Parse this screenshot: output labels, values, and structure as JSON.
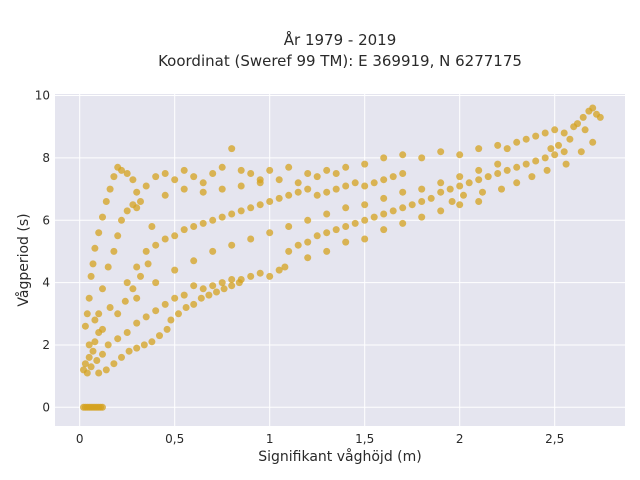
{
  "chart_data": {
    "type": "scatter",
    "title_line1": "År 1979 - 2019",
    "title_line2": "Koordinat (Sweref 99 TM): E 369919, N 6277175",
    "xlabel": "Signifikant våghöjd (m)",
    "ylabel": "Vågperiod (s)",
    "xlim": [
      -0.13,
      2.87
    ],
    "ylim": [
      -0.6,
      10.05
    ],
    "x_ticks": [
      0,
      0.5,
      1,
      1.5,
      2,
      2.5
    ],
    "x_tick_labels": [
      "0",
      "0,5",
      "1",
      "1,5",
      "2",
      "2,5"
    ],
    "y_ticks": [
      0,
      2,
      4,
      6,
      8,
      10
    ],
    "y_tick_labels": [
      "0",
      "2",
      "4",
      "6",
      "8",
      "10"
    ],
    "grid": true,
    "legend": "none",
    "marker_color": "#d4a21f",
    "plot_background": "#e5e5ef",
    "series": [
      {
        "values": [
          [
            0.02,
            0.0
          ],
          [
            0.03,
            0.0
          ],
          [
            0.04,
            0.0
          ],
          [
            0.05,
            0.0
          ],
          [
            0.06,
            0.0
          ],
          [
            0.07,
            0.0
          ],
          [
            0.08,
            0.0
          ],
          [
            0.09,
            0.0
          ],
          [
            0.1,
            0.0
          ],
          [
            0.11,
            0.0
          ],
          [
            0.12,
            0.0
          ],
          [
            0.02,
            1.2
          ],
          [
            0.03,
            1.4
          ],
          [
            0.04,
            1.1
          ],
          [
            0.05,
            1.6
          ],
          [
            0.06,
            1.3
          ],
          [
            0.07,
            1.8
          ],
          [
            0.08,
            2.1
          ],
          [
            0.09,
            1.5
          ],
          [
            0.1,
            2.4
          ],
          [
            0.12,
            1.7
          ],
          [
            0.03,
            2.6
          ],
          [
            0.04,
            3.0
          ],
          [
            0.05,
            3.5
          ],
          [
            0.06,
            4.2
          ],
          [
            0.07,
            4.6
          ],
          [
            0.08,
            5.1
          ],
          [
            0.1,
            5.6
          ],
          [
            0.12,
            6.1
          ],
          [
            0.14,
            6.6
          ],
          [
            0.16,
            7.0
          ],
          [
            0.18,
            7.4
          ],
          [
            0.2,
            7.7
          ],
          [
            0.22,
            7.6
          ],
          [
            0.25,
            7.5
          ],
          [
            0.28,
            7.3
          ],
          [
            0.3,
            6.9
          ],
          [
            0.35,
            7.1
          ],
          [
            0.4,
            7.4
          ],
          [
            0.45,
            7.5
          ],
          [
            0.5,
            7.3
          ],
          [
            0.15,
            2.0
          ],
          [
            0.2,
            2.2
          ],
          [
            0.25,
            2.4
          ],
          [
            0.3,
            2.7
          ],
          [
            0.35,
            2.9
          ],
          [
            0.4,
            3.1
          ],
          [
            0.45,
            3.3
          ],
          [
            0.5,
            3.5
          ],
          [
            0.55,
            3.6
          ],
          [
            0.6,
            3.9
          ],
          [
            0.65,
            3.8
          ],
          [
            0.7,
            3.9
          ],
          [
            0.75,
            4.0
          ],
          [
            0.8,
            4.1
          ],
          [
            0.85,
            4.1
          ],
          [
            0.9,
            4.2
          ],
          [
            0.95,
            4.3
          ],
          [
            1.0,
            4.2
          ],
          [
            1.05,
            4.4
          ],
          [
            1.08,
            4.5
          ],
          [
            0.55,
            7.6
          ],
          [
            0.6,
            7.4
          ],
          [
            0.65,
            7.2
          ],
          [
            0.7,
            7.5
          ],
          [
            0.75,
            7.7
          ],
          [
            0.8,
            8.3
          ],
          [
            0.85,
            7.6
          ],
          [
            0.9,
            7.5
          ],
          [
            0.95,
            7.3
          ],
          [
            1.0,
            7.6
          ],
          [
            1.1,
            7.7
          ],
          [
            1.2,
            7.5
          ],
          [
            1.3,
            7.6
          ],
          [
            1.4,
            7.7
          ],
          [
            1.5,
            7.8
          ],
          [
            1.6,
            8.0
          ],
          [
            1.7,
            8.1
          ],
          [
            1.8,
            8.0
          ],
          [
            1.9,
            8.2
          ],
          [
            2.0,
            8.1
          ],
          [
            2.1,
            8.3
          ],
          [
            2.2,
            8.4
          ],
          [
            2.25,
            8.3
          ],
          [
            2.3,
            8.5
          ],
          [
            2.35,
            8.6
          ],
          [
            2.4,
            8.7
          ],
          [
            2.45,
            8.8
          ],
          [
            2.5,
            8.9
          ],
          [
            2.55,
            8.8
          ],
          [
            2.6,
            9.0
          ],
          [
            2.62,
            9.1
          ],
          [
            2.65,
            9.3
          ],
          [
            2.68,
            9.5
          ],
          [
            2.7,
            9.6
          ],
          [
            2.72,
            9.4
          ],
          [
            2.74,
            9.3
          ],
          [
            2.66,
            8.9
          ],
          [
            2.58,
            8.6
          ],
          [
            2.52,
            8.4
          ],
          [
            2.48,
            8.3
          ],
          [
            1.1,
            5.0
          ],
          [
            1.15,
            5.2
          ],
          [
            1.2,
            5.3
          ],
          [
            1.25,
            5.5
          ],
          [
            1.3,
            5.6
          ],
          [
            1.35,
            5.7
          ],
          [
            1.4,
            5.8
          ],
          [
            1.45,
            5.9
          ],
          [
            1.5,
            6.0
          ],
          [
            1.55,
            6.1
          ],
          [
            1.6,
            6.2
          ],
          [
            1.65,
            6.3
          ],
          [
            1.7,
            6.4
          ],
          [
            1.75,
            6.5
          ],
          [
            1.8,
            6.6
          ],
          [
            1.85,
            6.7
          ],
          [
            1.9,
            6.9
          ],
          [
            1.95,
            7.0
          ],
          [
            2.0,
            7.1
          ],
          [
            2.05,
            7.2
          ],
          [
            2.1,
            7.3
          ],
          [
            2.15,
            7.4
          ],
          [
            2.2,
            7.5
          ],
          [
            2.25,
            7.6
          ],
          [
            2.3,
            7.7
          ],
          [
            2.35,
            7.8
          ],
          [
            2.4,
            7.9
          ],
          [
            2.45,
            8.0
          ],
          [
            2.5,
            8.1
          ],
          [
            2.55,
            8.2
          ],
          [
            0.25,
            4.0
          ],
          [
            0.3,
            4.5
          ],
          [
            0.35,
            5.0
          ],
          [
            0.4,
            5.2
          ],
          [
            0.45,
            5.4
          ],
          [
            0.5,
            5.5
          ],
          [
            0.55,
            5.7
          ],
          [
            0.6,
            5.8
          ],
          [
            0.65,
            5.9
          ],
          [
            0.7,
            6.0
          ],
          [
            0.75,
            6.1
          ],
          [
            0.8,
            6.2
          ],
          [
            0.85,
            6.3
          ],
          [
            0.9,
            6.4
          ],
          [
            0.95,
            6.5
          ],
          [
            1.0,
            6.6
          ],
          [
            1.05,
            6.7
          ],
          [
            1.1,
            6.8
          ],
          [
            1.15,
            6.9
          ],
          [
            1.2,
            7.0
          ],
          [
            1.25,
            6.8
          ],
          [
            1.3,
            6.9
          ],
          [
            1.35,
            7.0
          ],
          [
            1.4,
            7.1
          ],
          [
            1.45,
            7.2
          ],
          [
            1.5,
            7.1
          ],
          [
            1.55,
            7.2
          ],
          [
            1.6,
            7.3
          ],
          [
            1.65,
            7.4
          ],
          [
            1.7,
            7.5
          ],
          [
            0.3,
            3.5
          ],
          [
            0.4,
            4.0
          ],
          [
            0.5,
            4.4
          ],
          [
            0.6,
            4.7
          ],
          [
            0.7,
            5.0
          ],
          [
            0.8,
            5.2
          ],
          [
            0.9,
            5.4
          ],
          [
            1.0,
            5.6
          ],
          [
            1.1,
            5.8
          ],
          [
            1.2,
            6.0
          ],
          [
            1.3,
            6.2
          ],
          [
            1.4,
            6.4
          ],
          [
            1.5,
            6.5
          ],
          [
            1.6,
            6.7
          ],
          [
            1.7,
            6.9
          ],
          [
            1.8,
            7.0
          ],
          [
            1.9,
            7.2
          ],
          [
            2.0,
            7.4
          ],
          [
            2.1,
            7.6
          ],
          [
            2.2,
            7.8
          ],
          [
            0.1,
            3.0
          ],
          [
            0.12,
            3.8
          ],
          [
            0.15,
            4.5
          ],
          [
            0.18,
            5.0
          ],
          [
            0.2,
            5.5
          ],
          [
            0.22,
            6.0
          ],
          [
            0.25,
            6.3
          ],
          [
            0.28,
            6.5
          ],
          [
            0.3,
            6.4
          ],
          [
            0.32,
            6.6
          ],
          [
            0.05,
            2.0
          ],
          [
            0.08,
            2.8
          ],
          [
            0.12,
            2.5
          ],
          [
            0.16,
            3.2
          ],
          [
            0.2,
            3.0
          ],
          [
            0.24,
            3.4
          ],
          [
            0.28,
            3.8
          ],
          [
            0.32,
            4.2
          ],
          [
            0.36,
            4.6
          ],
          [
            0.38,
            5.8
          ],
          [
            1.2,
            4.8
          ],
          [
            1.3,
            5.0
          ],
          [
            1.4,
            5.3
          ],
          [
            1.5,
            5.4
          ],
          [
            1.6,
            5.7
          ],
          [
            1.7,
            5.9
          ],
          [
            1.8,
            6.1
          ],
          [
            1.9,
            6.3
          ],
          [
            2.0,
            6.5
          ],
          [
            2.1,
            6.6
          ],
          [
            0.45,
            6.8
          ],
          [
            0.55,
            7.0
          ],
          [
            0.65,
            6.9
          ],
          [
            0.75,
            7.0
          ],
          [
            0.85,
            7.1
          ],
          [
            0.95,
            7.2
          ],
          [
            1.05,
            7.3
          ],
          [
            1.15,
            7.2
          ],
          [
            1.25,
            7.4
          ],
          [
            1.35,
            7.5
          ],
          [
            0.1,
            1.1
          ],
          [
            0.14,
            1.2
          ],
          [
            0.18,
            1.4
          ],
          [
            0.22,
            1.6
          ],
          [
            0.26,
            1.8
          ],
          [
            0.3,
            1.9
          ],
          [
            0.34,
            2.0
          ],
          [
            0.38,
            2.1
          ],
          [
            0.42,
            2.3
          ],
          [
            0.46,
            2.5
          ],
          [
            0.48,
            2.8
          ],
          [
            0.52,
            3.0
          ],
          [
            0.56,
            3.2
          ],
          [
            0.6,
            3.3
          ],
          [
            0.64,
            3.5
          ],
          [
            0.68,
            3.6
          ],
          [
            0.72,
            3.7
          ],
          [
            0.76,
            3.8
          ],
          [
            0.8,
            3.9
          ],
          [
            0.84,
            4.0
          ],
          [
            1.96,
            6.6
          ],
          [
            2.02,
            6.8
          ],
          [
            2.12,
            6.9
          ],
          [
            2.22,
            7.0
          ],
          [
            2.3,
            7.2
          ],
          [
            2.38,
            7.4
          ],
          [
            2.46,
            7.6
          ],
          [
            2.56,
            7.8
          ],
          [
            2.64,
            8.2
          ],
          [
            2.7,
            8.5
          ]
        ]
      }
    ]
  }
}
